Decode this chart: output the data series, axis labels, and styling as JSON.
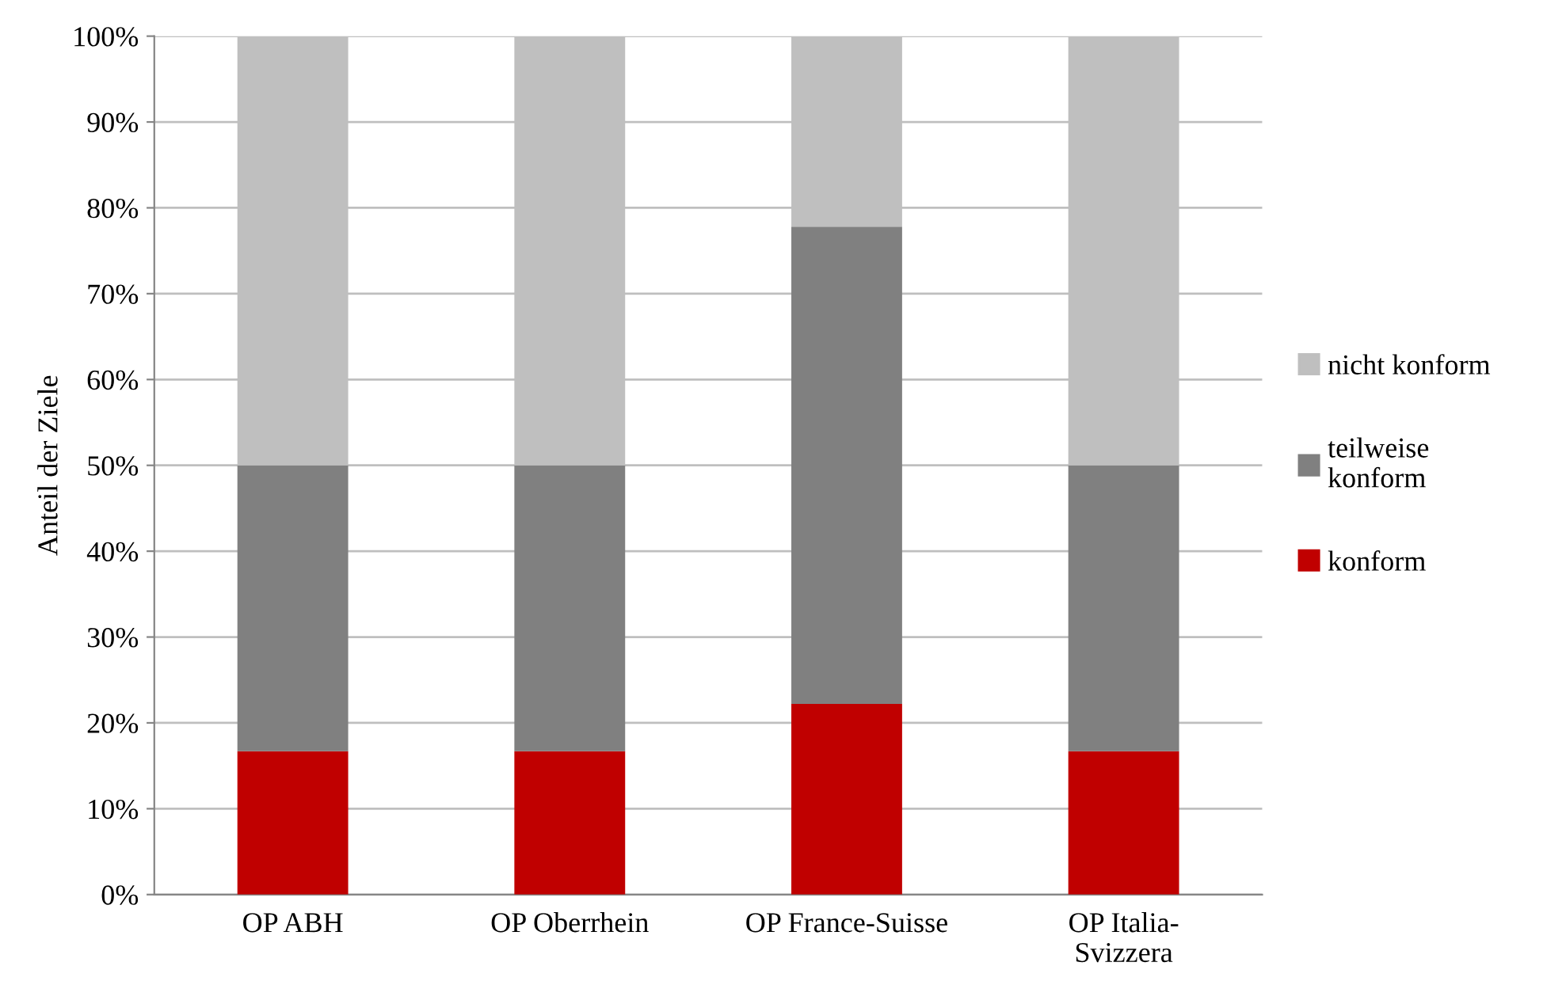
{
  "chart_data": {
    "type": "bar",
    "stacked": true,
    "ylabel": "Anteil der Ziele",
    "categories": [
      "OP ABH",
      "OP Oberrhein",
      "OP France-Suisse",
      "OP Italia-\nSvizzera"
    ],
    "series": [
      {
        "name": "konform",
        "color": "#c00000",
        "values": [
          16.7,
          16.7,
          22.2,
          16.7
        ]
      },
      {
        "name": "teilweise\nkonform",
        "color": "#808080",
        "values": [
          33.3,
          33.3,
          55.6,
          33.3
        ]
      },
      {
        "name": "nicht konform",
        "color": "#bfbfbf",
        "values": [
          50,
          50,
          22.2,
          50
        ]
      }
    ],
    "ylim": [
      0,
      100
    ],
    "yticks": [
      {
        "value": 0,
        "label": "0%"
      },
      {
        "value": 10,
        "label": "10%"
      },
      {
        "value": 20,
        "label": "20%"
      },
      {
        "value": 30,
        "label": "30%"
      },
      {
        "value": 40,
        "label": "40%"
      },
      {
        "value": 50,
        "label": "50%"
      },
      {
        "value": 60,
        "label": "60%"
      },
      {
        "value": 70,
        "label": "70%"
      },
      {
        "value": 80,
        "label": "80%"
      },
      {
        "value": 90,
        "label": "90%"
      },
      {
        "value": 100,
        "label": "100%"
      }
    ],
    "grid": "y",
    "legend": "right"
  }
}
